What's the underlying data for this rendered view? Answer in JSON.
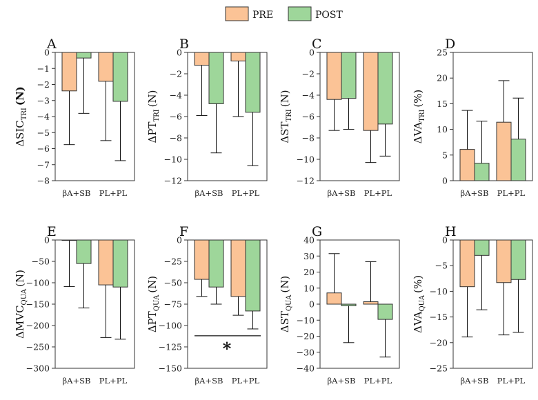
{
  "legend": {
    "pre_label": "PRE",
    "post_label": "POST",
    "pre_color": "#fbc396",
    "post_color": "#9ed69a"
  },
  "chart_data": [
    {
      "type": "bar",
      "letter": "A",
      "ylabel_main": "ΔSIC",
      "ylabel_sub": "TRI",
      "ylabel_unit": "(N)",
      "unit_bold": true,
      "categories": [
        "βA+SB",
        "PL+PL"
      ],
      "series": [
        {
          "name": "PRE",
          "values": [
            -2.4,
            -1.8
          ],
          "errors": [
            3.35,
            3.7
          ]
        },
        {
          "name": "POST",
          "values": [
            -0.35,
            -3.05
          ],
          "errors": [
            3.45,
            3.7
          ]
        }
      ],
      "ylim": [
        -8,
        0
      ],
      "ticks": [
        0,
        -1,
        -2,
        -3,
        -4,
        -5,
        -6,
        -7,
        -8
      ],
      "tick_labels": [
        "0",
        "−1",
        "−2",
        "−3",
        "−4",
        "−5",
        "−6",
        "−7",
        "−8"
      ]
    },
    {
      "type": "bar",
      "letter": "B",
      "ylabel_main": "ΔPT",
      "ylabel_sub": "TRI",
      "ylabel_unit": "(N)",
      "unit_bold": false,
      "categories": [
        "βA+SB",
        "PL+PL"
      ],
      "series": [
        {
          "name": "PRE",
          "values": [
            -1.2,
            -0.8
          ],
          "errors": [
            4.7,
            5.2
          ]
        },
        {
          "name": "POST",
          "values": [
            -4.8,
            -5.6
          ],
          "errors": [
            4.6,
            5.0
          ]
        }
      ],
      "ylim": [
        -12,
        0
      ],
      "ticks": [
        0,
        -2,
        -4,
        -6,
        -8,
        -10,
        -12
      ],
      "tick_labels": [
        "0",
        "−2",
        "−4",
        "−6",
        "−8",
        "−10",
        "−12"
      ]
    },
    {
      "type": "bar",
      "letter": "C",
      "ylabel_main": "ΔST",
      "ylabel_sub": "TRI",
      "ylabel_unit": "(N)",
      "unit_bold": false,
      "categories": [
        "βA+SB",
        "PL+PL"
      ],
      "series": [
        {
          "name": "PRE",
          "values": [
            -4.4,
            -7.3
          ],
          "errors": [
            2.9,
            3.0
          ]
        },
        {
          "name": "POST",
          "values": [
            -4.3,
            -6.7
          ],
          "errors": [
            2.9,
            3.0
          ]
        }
      ],
      "ylim": [
        -12,
        0
      ],
      "ticks": [
        0,
        -2,
        -4,
        -6,
        -8,
        -10,
        -12
      ],
      "tick_labels": [
        "0",
        "−2",
        "−4",
        "−6",
        "−8",
        "−10",
        "−12"
      ]
    },
    {
      "type": "bar",
      "letter": "D",
      "ylabel_main": "ΔVA",
      "ylabel_sub": "TRI",
      "ylabel_unit": "(%)",
      "unit_bold": false,
      "categories": [
        "βA+SB",
        "PL+PL"
      ],
      "series": [
        {
          "name": "PRE",
          "values": [
            6.1,
            11.4
          ],
          "errors": [
            7.6,
            8.1
          ]
        },
        {
          "name": "POST",
          "values": [
            3.4,
            8.1
          ],
          "errors": [
            8.2,
            8.0
          ]
        }
      ],
      "ylim": [
        0,
        25
      ],
      "ticks": [
        0,
        5,
        10,
        15,
        20,
        25
      ],
      "tick_labels": [
        "0",
        "5",
        "10",
        "15",
        "20",
        "25"
      ]
    },
    {
      "type": "bar",
      "letter": "E",
      "ylabel_main": "ΔMVC",
      "ylabel_sub": "QUA",
      "ylabel_unit": "(N)",
      "unit_bold": false,
      "categories": [
        "βA+SB",
        "PL+PL"
      ],
      "series": [
        {
          "name": "PRE",
          "values": [
            -1,
            -105
          ],
          "errors": [
            108,
            123
          ]
        },
        {
          "name": "POST",
          "values": [
            -55,
            -110
          ],
          "errors": [
            104,
            122
          ]
        }
      ],
      "ylim": [
        -300,
        0
      ],
      "ticks": [
        0,
        -50,
        -100,
        -150,
        -200,
        -250,
        -300
      ],
      "tick_labels": [
        "0",
        "−50",
        "−100",
        "−150",
        "−200",
        "−250",
        "−300"
      ]
    },
    {
      "type": "bar",
      "letter": "F",
      "ylabel_main": "ΔPT",
      "ylabel_sub": "QUA",
      "ylabel_unit": "(N)",
      "unit_bold": false,
      "categories": [
        "βA+SB",
        "PL+PL"
      ],
      "series": [
        {
          "name": "PRE",
          "values": [
            -46,
            -66
          ],
          "errors": [
            20,
            22
          ]
        },
        {
          "name": "POST",
          "values": [
            -55,
            -83
          ],
          "errors": [
            20,
            21
          ]
        }
      ],
      "ylim": [
        -150,
        0
      ],
      "ticks": [
        0,
        -25,
        -50,
        -75,
        -100,
        -125,
        -150
      ],
      "tick_labels": [
        "0",
        "−25",
        "−50",
        "−75",
        "−100",
        "−125",
        "−150"
      ],
      "significance_line": -112,
      "annotation": "*"
    },
    {
      "type": "bar",
      "letter": "G",
      "ylabel_main": "ΔST",
      "ylabel_sub": "QUA",
      "ylabel_unit": "(N)",
      "unit_bold": false,
      "categories": [
        "βA+SB",
        "PL+PL"
      ],
      "series": [
        {
          "name": "PRE",
          "values": [
            7,
            1.5
          ],
          "errors": [
            24.5,
            25
          ]
        },
        {
          "name": "POST",
          "values": [
            -1,
            -9.5
          ],
          "errors": [
            23,
            23.5
          ]
        }
      ],
      "ylim": [
        -40,
        40
      ],
      "ticks": [
        40,
        30,
        20,
        10,
        0,
        -10,
        -20,
        -30,
        -40
      ],
      "tick_labels": [
        "40",
        "30",
        "20",
        "10",
        "0",
        "−10",
        "−20",
        "−30",
        "−40"
      ]
    },
    {
      "type": "bar",
      "letter": "H",
      "ylabel_main": "ΔVA",
      "ylabel_sub": "QUA",
      "ylabel_unit": "(%)",
      "unit_bold": false,
      "categories": [
        "βA+SB",
        "PL+PL"
      ],
      "series": [
        {
          "name": "PRE",
          "values": [
            -9.1,
            -8.3
          ],
          "errors": [
            9.8,
            10.2
          ]
        },
        {
          "name": "POST",
          "values": [
            -3.0,
            -7.7
          ],
          "errors": [
            10.6,
            10.3
          ]
        }
      ],
      "ylim": [
        -25,
        0
      ],
      "ticks": [
        0,
        -5,
        -10,
        -15,
        -20,
        -25
      ],
      "tick_labels": [
        "0",
        "−5",
        "−10",
        "−15",
        "−20",
        "−25"
      ]
    }
  ]
}
